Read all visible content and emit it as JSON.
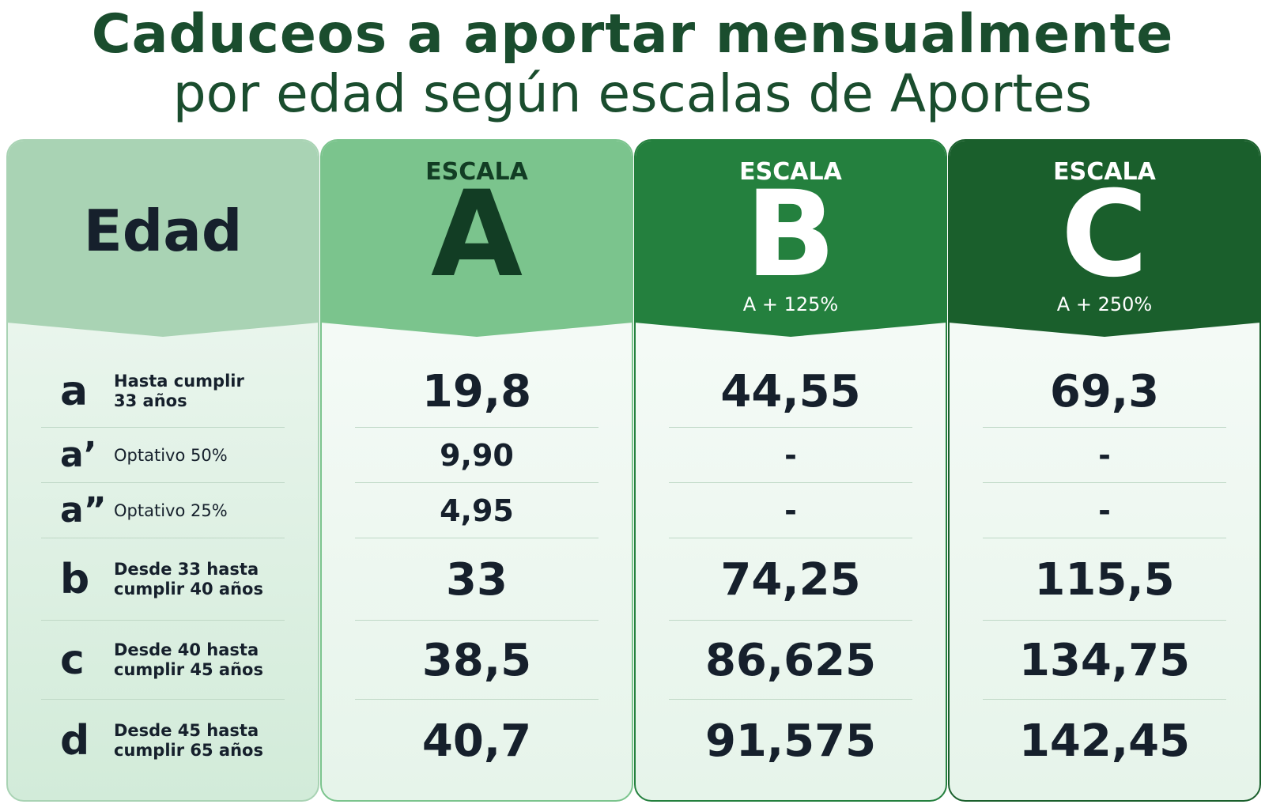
{
  "title": {
    "line1": "Caduceos a aportar mensualmente",
    "line2": "por edad según escalas de Aportes"
  },
  "header": {
    "edad": "Edad",
    "scales": [
      {
        "label": "ESCALA",
        "letter": "A",
        "sub": ""
      },
      {
        "label": "ESCALA",
        "letter": "B",
        "sub": "A + 125%"
      },
      {
        "label": "ESCALA",
        "letter": "C",
        "sub": "A + 250%"
      }
    ]
  },
  "rows": [
    {
      "code": "a",
      "desc": "Hasta cumplir\n33 años",
      "values": [
        "19,8",
        "44,55",
        "69,3"
      ]
    },
    {
      "code": "a’",
      "desc": "Optativo 50%",
      "values": [
        "9,90",
        "-",
        "-"
      ]
    },
    {
      "code": "a”",
      "desc": "Optativo 25%",
      "values": [
        "4,95",
        "-",
        "-"
      ]
    },
    {
      "code": "b",
      "desc": "Desde 33 hasta\ncumplir 40 años",
      "values": [
        "33",
        "74,25",
        "115,5"
      ]
    },
    {
      "code": "c",
      "desc": "Desde 40 hasta\ncumplir 45 años",
      "values": [
        "38,5",
        "86,625",
        "134,75"
      ]
    },
    {
      "code": "d",
      "desc": "Desde 45 hasta\ncumplir 65 años",
      "values": [
        "40,7",
        "91,575",
        "142,45"
      ]
    }
  ],
  "colors": {
    "title": "#1a4d2e",
    "edad_header": "#a9d3b4",
    "scale_a": "#7bc48d",
    "scale_b": "#24803e",
    "scale_c": "#1a5f2c",
    "text": "#16202c"
  }
}
